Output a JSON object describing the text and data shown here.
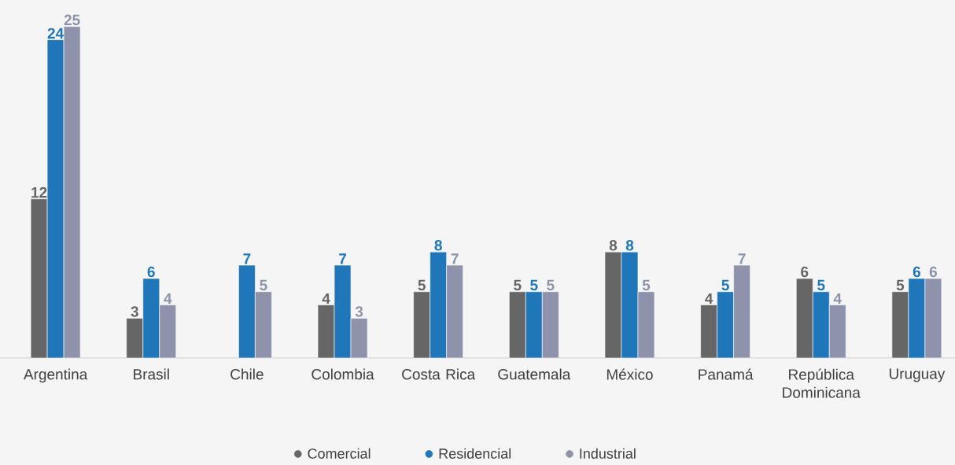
{
  "chart_data": {
    "type": "bar",
    "categories": [
      "Argentina",
      "Brasil",
      "Chile",
      "Colombia",
      "Costa Rica",
      "Guatemala",
      "México",
      "Panamá",
      "República Dominicana",
      "Uruguay"
    ],
    "series": [
      {
        "name": "Comercial",
        "color": "#666666",
        "values": [
          12,
          3,
          null,
          4,
          5,
          5,
          8,
          4,
          6,
          5
        ]
      },
      {
        "name": "Residencial",
        "color": "#1f77b9",
        "values": [
          24,
          6,
          7,
          7,
          8,
          5,
          8,
          5,
          5,
          6
        ]
      },
      {
        "name": "Industrial",
        "color": "#8e92aa",
        "values": [
          25,
          4,
          5,
          3,
          7,
          5,
          5,
          7,
          4,
          6
        ]
      }
    ],
    "data_labels": true,
    "legend": "bottom"
  }
}
